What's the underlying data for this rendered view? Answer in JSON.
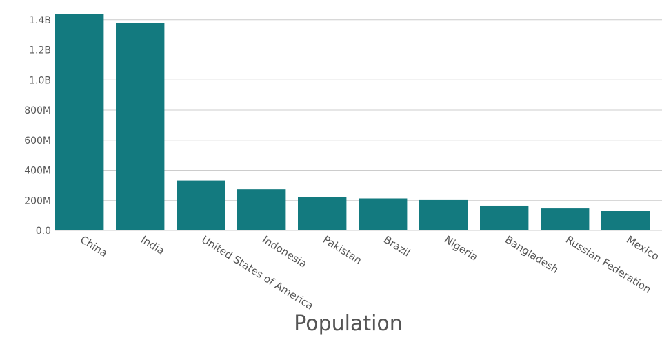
{
  "chart_data": {
    "type": "bar",
    "title": "",
    "xlabel": "Population",
    "ylabel": "",
    "categories": [
      "China",
      "India",
      "United States of America",
      "Indonesia",
      "Pakistan",
      "Brazil",
      "Nigeria",
      "Bangladesh",
      "Russian Federation",
      "Mexico"
    ],
    "values": [
      1439000000,
      1380000000,
      331000000,
      273500000,
      220900000,
      212600000,
      206100000,
      164700000,
      145900000,
      128900000
    ],
    "ylim": [
      0,
      1440000000
    ],
    "yticks": [
      0,
      200000000,
      400000000,
      600000000,
      800000000,
      1000000000,
      1200000000,
      1400000000
    ],
    "ytick_labels": [
      "0.0",
      "200M",
      "400M",
      "600M",
      "800M",
      "1.0B",
      "1.2B",
      "1.4B"
    ],
    "grid": true,
    "legend": "none",
    "bar_color": "#137a7f"
  }
}
